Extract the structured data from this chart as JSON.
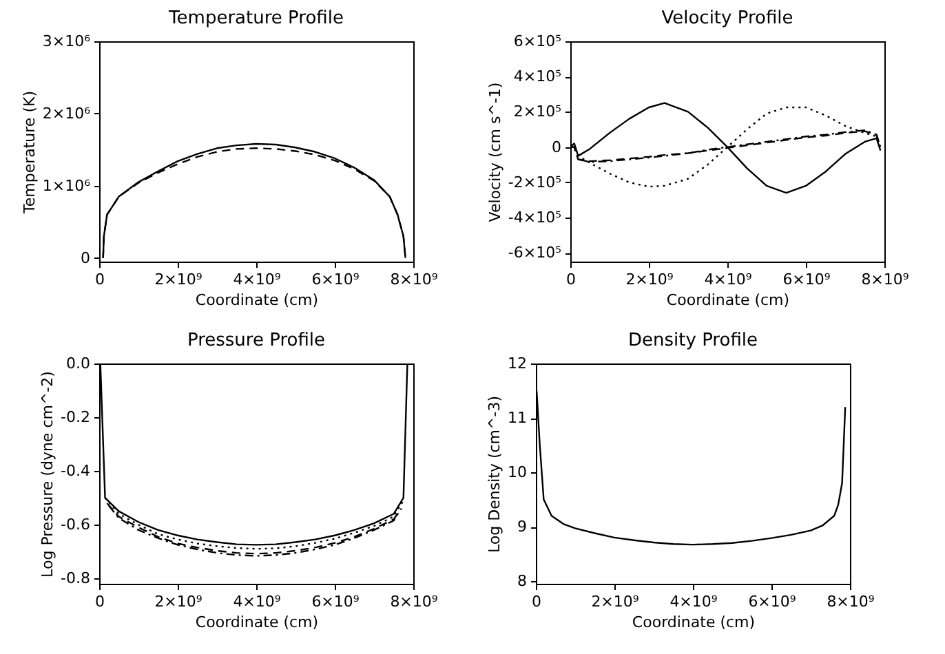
{
  "chart_data": [
    {
      "type": "line",
      "title": "Temperature Profile",
      "xlabel": "Coordinate (cm)",
      "ylabel": "Temperature (K)",
      "xlim": [
        0,
        8000000000.0
      ],
      "xticks": [
        {
          "value": 0,
          "label": "0"
        },
        {
          "value": 2000000000.0,
          "label": "2×10⁹"
        },
        {
          "value": 4000000000.0,
          "label": "4×10⁹"
        },
        {
          "value": 6000000000.0,
          "label": "6×10⁹"
        },
        {
          "value": 8000000000.0,
          "label": "8×10⁹"
        }
      ],
      "ylim": [
        -50000,
        3000000
      ],
      "yticks": [
        0,
        {
          "value": 1000000,
          "label": "1×10⁶"
        },
        {
          "value": 2000000,
          "label": "2×10⁶"
        },
        {
          "value": 3000000,
          "label": "3×10⁶"
        }
      ],
      "x": [
        100000000.0,
        120000000.0,
        200000000.0,
        500000000.0,
        1000000000.0,
        1500000000.0,
        2000000000.0,
        2500000000.0,
        3000000000.0,
        3500000000.0,
        4000000000.0,
        4500000000.0,
        5000000000.0,
        5500000000.0,
        6000000000.0,
        6500000000.0,
        7000000000.0,
        7400000000.0,
        7600000000.0,
        7750000000.0,
        7800000000.0
      ],
      "series": [
        {
          "color": "#000000",
          "line_style": "solid",
          "values": [
            0,
            300000,
            600000,
            850000,
            1050000,
            1200000,
            1340000,
            1440000,
            1520000,
            1560000,
            1580000,
            1570000,
            1530000,
            1470000,
            1380000,
            1250000,
            1080000,
            850000,
            600000,
            300000,
            0
          ]
        },
        {
          "color": "#000000",
          "line_style": "dashed",
          "values": [
            0,
            300000,
            600000,
            850000,
            1040000,
            1180000,
            1300000,
            1400000,
            1470000,
            1510000,
            1520000,
            1510000,
            1480000,
            1430000,
            1350000,
            1230000,
            1070000,
            850000,
            600000,
            300000,
            0
          ]
        }
      ]
    },
    {
      "type": "line",
      "title": "Velocity Profile",
      "xlabel": "Coordinate (cm)",
      "ylabel": "Velocity (cm s^-1)",
      "xlim": [
        0,
        8000000000.0
      ],
      "xticks": [
        {
          "value": 0,
          "label": "0"
        },
        {
          "value": 2000000000.0,
          "label": "2×10⁹"
        },
        {
          "value": 4000000000.0,
          "label": "4×10⁹"
        },
        {
          "value": 6000000000.0,
          "label": "6×10⁹"
        },
        {
          "value": 8000000000.0,
          "label": "8×10⁹"
        }
      ],
      "ylim": [
        -650000,
        600000
      ],
      "yticks": [
        {
          "value": -600000,
          "label": "-6×10⁵"
        },
        {
          "value": -400000,
          "label": "-4×10⁵"
        },
        {
          "value": -200000,
          "label": "-2×10⁵"
        },
        0,
        {
          "value": 200000,
          "label": "2×10⁵"
        },
        {
          "value": 400000,
          "label": "4×10⁵"
        },
        {
          "value": 600000,
          "label": "6×10⁵"
        }
      ],
      "x": [
        0,
        100000000.0,
        200000000.0,
        500000000.0,
        1000000000.0,
        1500000000.0,
        2000000000.0,
        2400000000.0,
        3000000000.0,
        3500000000.0,
        4000000000.0,
        4500000000.0,
        5000000000.0,
        5500000000.0,
        6000000000.0,
        6500000000.0,
        7000000000.0,
        7500000000.0,
        7800000000.0,
        7900000000.0
      ],
      "series": [
        {
          "color": "#000000",
          "line_style": "solid",
          "values": [
            0,
            20000,
            -50000,
            -10000,
            80000,
            160000,
            225000,
            250000,
            200000,
            110000,
            0,
            -120000,
            -220000,
            -260000,
            -220000,
            -140000,
            -40000,
            30000,
            50000,
            -20000
          ]
        },
        {
          "color": "#000000",
          "line_style": "dotted",
          "values": [
            0,
            0,
            -50000,
            -90000,
            -150000,
            -200000,
            -225000,
            -220000,
            -180000,
            -100000,
            0,
            100000,
            190000,
            225000,
            225000,
            180000,
            120000,
            80000,
            60000,
            0
          ]
        },
        {
          "color": "#000000",
          "line_style": "dashed",
          "values": [
            0,
            0,
            -70000,
            -80000,
            -75000,
            -65000,
            -55000,
            -45000,
            -35000,
            -20000,
            -5000,
            10000,
            25000,
            40000,
            55000,
            65000,
            80000,
            90000,
            70000,
            0
          ]
        },
        {
          "color": "#000000",
          "line_style": "dashdot",
          "values": [
            0,
            0,
            -70000,
            -85000,
            -80000,
            -70000,
            -60000,
            -50000,
            -35000,
            -15000,
            0,
            15000,
            30000,
            45000,
            60000,
            70000,
            85000,
            95000,
            70000,
            -10000
          ]
        }
      ]
    },
    {
      "type": "line",
      "title": "Pressure Profile",
      "xlabel": "Coordinate (cm)",
      "ylabel": "Log Pressure (dyne cm^-2)",
      "xlim": [
        0,
        8000000000.0
      ],
      "xticks": [
        {
          "value": 0,
          "label": "0"
        },
        {
          "value": 2000000000.0,
          "label": "2×10⁹"
        },
        {
          "value": 4000000000.0,
          "label": "4×10⁹"
        },
        {
          "value": 6000000000.0,
          "label": "6×10⁹"
        },
        {
          "value": 8000000000.0,
          "label": "8×10⁹"
        }
      ],
      "ylim": [
        -0.82,
        0
      ],
      "yticks": [
        {
          "value": -0.8,
          "label": "-0.8"
        },
        {
          "value": -0.6,
          "label": "-0.6"
        },
        {
          "value": -0.4,
          "label": "-0.4"
        },
        {
          "value": -0.2,
          "label": "-0.2"
        },
        {
          "value": 0,
          "label": "0.0"
        }
      ],
      "x": [
        30000000.0,
        150000000.0,
        500000000.0,
        1000000000.0,
        1500000000.0,
        2000000000.0,
        2500000000.0,
        3000000000.0,
        3500000000.0,
        4000000000.0,
        4500000000.0,
        5000000000.0,
        5500000000.0,
        6000000000.0,
        6500000000.0,
        7000000000.0,
        7500000000.0,
        7750000000.0,
        7850000000.0
      ],
      "series": [
        {
          "color": "#000000",
          "line_style": "solid",
          "values": [
            0,
            -0.5,
            -0.55,
            -0.59,
            -0.62,
            -0.64,
            -0.655,
            -0.665,
            -0.673,
            -0.675,
            -0.673,
            -0.665,
            -0.655,
            -0.64,
            -0.62,
            -0.595,
            -0.56,
            -0.5,
            0
          ]
        },
        {
          "color": "#000000",
          "line_style": "dotted",
          "x": [
            150000000.0,
            500000000.0,
            1000000000.0,
            1500000000.0,
            2000000000.0,
            2500000000.0,
            3000000000.0,
            3500000000.0,
            4000000000.0,
            4500000000.0,
            5000000000.0,
            5500000000.0,
            6000000000.0,
            6500000000.0,
            7000000000.0,
            7500000000.0,
            7750000000.0
          ],
          "values": [
            -0.5,
            -0.56,
            -0.6,
            -0.635,
            -0.655,
            -0.67,
            -0.68,
            -0.687,
            -0.69,
            -0.688,
            -0.68,
            -0.668,
            -0.652,
            -0.63,
            -0.605,
            -0.57,
            -0.51
          ]
        },
        {
          "color": "#000000",
          "line_style": "dashed",
          "x": [
            200000000.0,
            500000000.0,
            1000000000.0,
            1500000000.0,
            2000000000.0,
            2500000000.0,
            3000000000.0,
            3500000000.0,
            4000000000.0,
            4500000000.0,
            5000000000.0,
            5500000000.0,
            6000000000.0,
            6500000000.0,
            7000000000.0,
            7500000000.0,
            7700000000.0
          ],
          "values": [
            -0.52,
            -0.57,
            -0.61,
            -0.645,
            -0.67,
            -0.685,
            -0.697,
            -0.705,
            -0.708,
            -0.705,
            -0.697,
            -0.685,
            -0.668,
            -0.645,
            -0.615,
            -0.58,
            -0.54
          ]
        },
        {
          "color": "#000000",
          "line_style": "dashdot",
          "x": [
            250000000.0,
            500000000.0,
            1000000000.0,
            1500000000.0,
            2000000000.0,
            2500000000.0,
            3000000000.0,
            3500000000.0,
            4000000000.0,
            4500000000.0,
            5000000000.0,
            5500000000.0,
            6000000000.0,
            6500000000.0,
            7000000000.0,
            7500000000.0,
            7650000000.0
          ],
          "values": [
            -0.53,
            -0.575,
            -0.62,
            -0.65,
            -0.675,
            -0.692,
            -0.705,
            -0.713,
            -0.716,
            -0.713,
            -0.705,
            -0.692,
            -0.675,
            -0.65,
            -0.62,
            -0.585,
            -0.55
          ]
        }
      ]
    },
    {
      "type": "line",
      "title": "Density Profile",
      "xlabel": "Coordinate (cm)",
      "ylabel": "Log Density (cm^-3)",
      "xlim": [
        0,
        8000000000.0
      ],
      "xticks": [
        {
          "value": 0,
          "label": "0"
        },
        {
          "value": 2000000000.0,
          "label": "2×10⁹"
        },
        {
          "value": 4000000000.0,
          "label": "4×10⁹"
        },
        {
          "value": 6000000000.0,
          "label": "6×10⁹"
        },
        {
          "value": 8000000000.0,
          "label": "8×10⁹"
        }
      ],
      "ylim": [
        7.95,
        12
      ],
      "yticks": [
        8,
        9,
        10,
        11,
        12
      ],
      "x": [
        20000000.0,
        100000000.0,
        200000000.0,
        400000000.0,
        700000000.0,
        1000000000.0,
        1500000000.0,
        2000000000.0,
        2500000000.0,
        3000000000.0,
        3500000000.0,
        4000000000.0,
        4500000000.0,
        5000000000.0,
        5500000000.0,
        6000000000.0,
        6500000000.0,
        7000000000.0,
        7300000000.0,
        7600000000.0,
        7700000000.0,
        7800000000.0,
        7880000000.0
      ],
      "series": [
        {
          "color": "#000000",
          "line_style": "solid",
          "values": [
            11.5,
            10.5,
            9.5,
            9.2,
            9.05,
            8.97,
            8.88,
            8.8,
            8.75,
            8.71,
            8.68,
            8.67,
            8.68,
            8.7,
            8.74,
            8.79,
            8.85,
            8.93,
            9.02,
            9.2,
            9.4,
            9.8,
            11.2
          ]
        }
      ]
    }
  ]
}
